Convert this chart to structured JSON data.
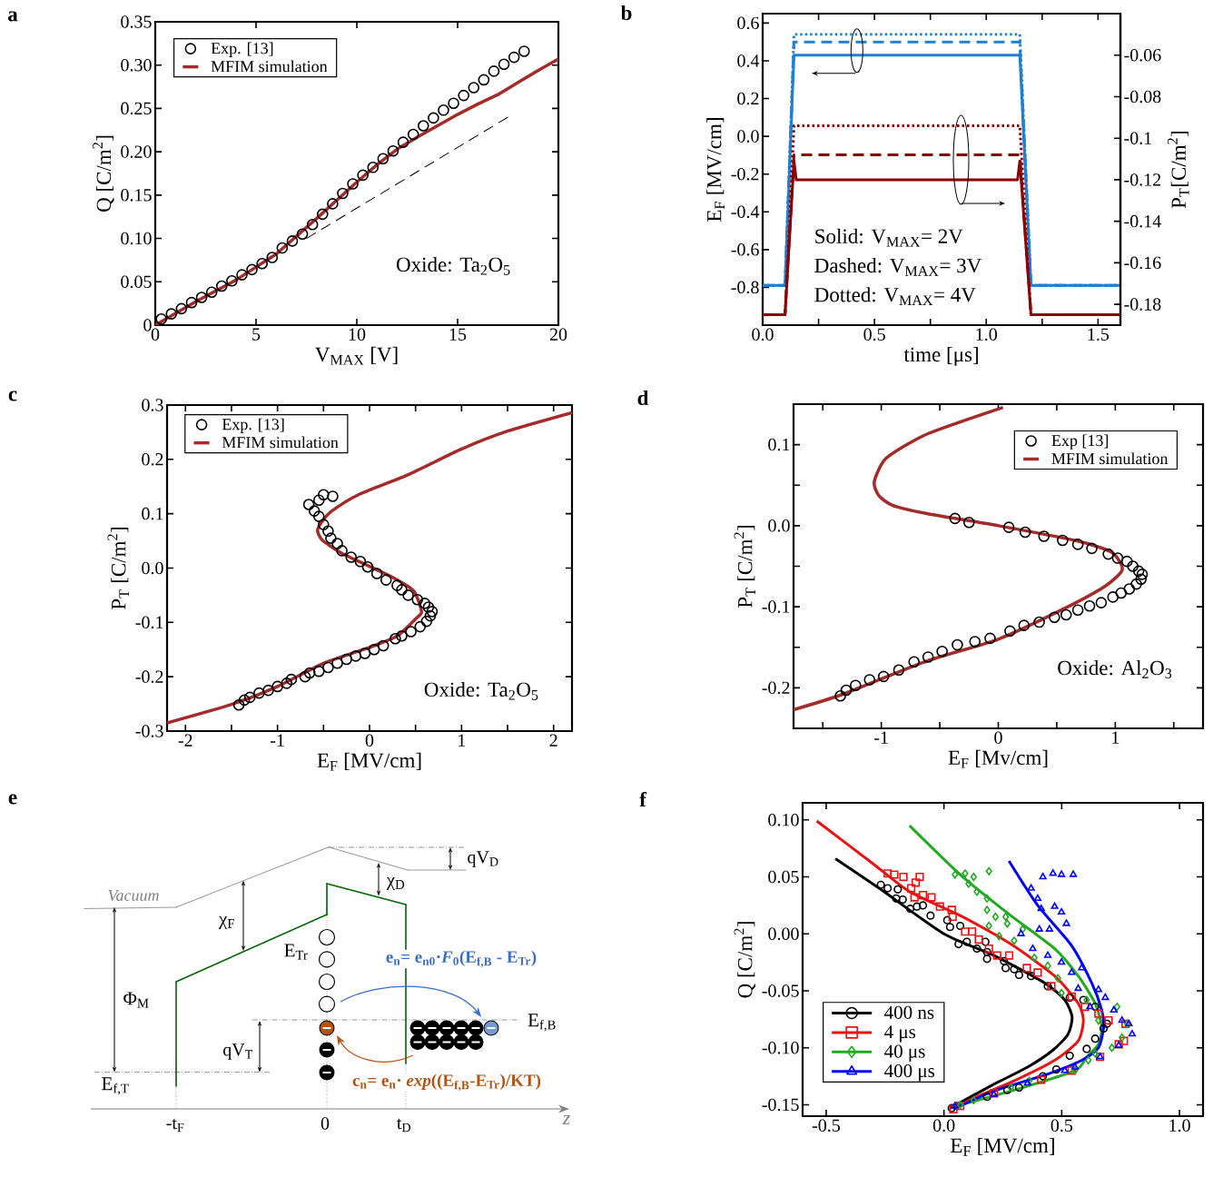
{
  "chart_data": [
    {
      "type": "line",
      "title": "a",
      "xlabel": "V$_{MAX}$ [V]",
      "ylabel": "Q [C/m$^{2}$]",
      "xlim": [
        0,
        20
      ],
      "ylim": [
        0,
        0.35
      ],
      "xticks": [
        0,
        5,
        10,
        15,
        20
      ],
      "yticks": [
        0,
        0.05,
        {
          "value": 0.1,
          "label": "0.10"
        },
        0.15,
        {
          "value": 0.2,
          "label": "0.20"
        },
        0.25,
        {
          "value": 0.3,
          "label": "0.30"
        },
        0.35
      ],
      "legend": "top left",
      "annotations": [
        "Oxide: Ta$_{2}$O$_{5}$"
      ],
      "series": [
        {
          "name": "Exp. [13]",
          "type": "scatter",
          "marker": "circle",
          "color": "#000000",
          "x": [
            0.3,
            0.8,
            1.3,
            1.8,
            2.3,
            2.8,
            3.3,
            3.8,
            4.3,
            4.8,
            5.3,
            5.8,
            6.3,
            6.8,
            7.3,
            7.8,
            8.3,
            8.8,
            9.3,
            9.8,
            10.3,
            10.8,
            11.3,
            11.8,
            12.3,
            12.8,
            13.3,
            13.8,
            14.3,
            14.8,
            15.3,
            15.8,
            16.3,
            16.8,
            17.3,
            17.8,
            18.3
          ],
          "values": [
            0.007,
            0.013,
            0.019,
            0.026,
            0.032,
            0.038,
            0.045,
            0.051,
            0.058,
            0.064,
            0.071,
            0.078,
            0.089,
            0.097,
            0.105,
            0.116,
            0.128,
            0.14,
            0.152,
            0.163,
            0.173,
            0.182,
            0.192,
            0.201,
            0.211,
            0.22,
            0.23,
            0.239,
            0.248,
            0.256,
            0.265,
            0.274,
            0.283,
            0.293,
            0.301,
            0.309,
            0.316
          ]
        },
        {
          "name": "MFIM simulation",
          "type": "line",
          "color": "#a52a2a",
          "x": [
            0,
            2,
            4,
            6,
            8,
            10,
            11,
            12,
            13,
            14,
            15,
            16,
            17,
            18,
            19,
            20
          ],
          "values": [
            0,
            0.027,
            0.052,
            0.082,
            0.123,
            0.165,
            0.185,
            0.203,
            0.217,
            0.23,
            0.243,
            0.255,
            0.266,
            0.28,
            0.294,
            0.307
          ]
        },
        {
          "type": "line",
          "line_style": "dashed",
          "color": "#000000",
          "x": [
            7.5,
            17.5
          ],
          "values": [
            0.1,
            0.24
          ]
        }
      ]
    },
    {
      "type": "line",
      "title": "b",
      "xlabel": "time [μs]",
      "ylabel": "E$_{F}$ [MV/cm]",
      "y2label": "P$_{T}$[C/m$^{2}$]",
      "xlim": [
        0,
        1.6
      ],
      "ylim": [
        -1.0,
        0.65
      ],
      "y2lim": [
        -0.19,
        -0.04
      ],
      "xticks": [
        {
          "value": 0,
          "label": "0.0"
        },
        {
          "value": 0.25,
          "label": null
        },
        0.5,
        {
          "value": 0.75,
          "label": null
        },
        {
          "value": 1,
          "label": "1.0"
        },
        {
          "value": 1.25,
          "label": null
        },
        1.5
      ],
      "yticks": [
        -0.8,
        -0.6,
        -0.4,
        -0.2,
        {
          "value": 0,
          "label": "0.0"
        },
        0.2,
        0.4,
        0.6
      ],
      "y2ticks": [
        -0.18,
        -0.16,
        -0.14,
        -0.12,
        -0.1,
        -0.08,
        -0.06
      ],
      "annotations": [
        "Solid: V$_{MAX}$= 2V",
        "Dashed: V$_{MAX}$= 3V",
        "Dotted: V$_{MAX}$= 4V"
      ],
      "x": [
        0,
        0.1,
        0.14,
        1.15,
        1.2,
        1.6
      ],
      "series": [
        {
          "color": "#1f7fd0",
          "line_style": "solid",
          "values": [
            -0.79,
            -0.79,
            0.43,
            0.43,
            -0.79,
            -0.79
          ]
        },
        {
          "color": "#1f7fd0",
          "line_style": "dashed",
          "values": [
            -0.79,
            -0.79,
            0.5,
            0.5,
            -0.79,
            -0.79
          ]
        },
        {
          "color": "#1f7fd0",
          "line_style": "dotted",
          "values": [
            -0.79,
            -0.79,
            0.54,
            0.54,
            -0.79,
            -0.79
          ]
        },
        {
          "color": "#8b0000",
          "line_style": "solid",
          "axis": "y2",
          "x": [
            0,
            0.1,
            0.14,
            0.15,
            1.14,
            1.15,
            1.2,
            1.6
          ],
          "values": [
            -0.185,
            -0.185,
            -0.111,
            -0.12,
            -0.12,
            -0.111,
            -0.185,
            -0.185
          ]
        },
        {
          "color": "#8b0000",
          "line_style": "dashed",
          "axis": "y2",
          "values": [
            -0.185,
            -0.185,
            -0.108,
            -0.108,
            -0.185,
            -0.185
          ]
        },
        {
          "color": "#8b0000",
          "line_style": "dotted",
          "axis": "y2",
          "values": [
            -0.185,
            -0.185,
            -0.094,
            -0.094,
            -0.185,
            -0.185
          ]
        }
      ]
    },
    {
      "type": "line",
      "title": "c",
      "xlabel": "E$_{F}$ [MV/cm]",
      "ylabel": "P$_{T}$ [C/m$^{2}$]",
      "xlim": [
        -2.2,
        2.2
      ],
      "ylim": [
        -0.3,
        0.3
      ],
      "xticks": [
        -2,
        {
          "value": -1.5,
          "label": null
        },
        -1,
        {
          "value": -0.5,
          "label": null
        },
        0,
        {
          "value": 0.5,
          "label": null
        },
        1,
        {
          "value": 1.5,
          "label": null
        },
        2
      ],
      "yticks": [
        -0.3,
        -0.2,
        -0.1,
        {
          "value": 0,
          "label": "0.0"
        },
        0.1,
        0.2,
        0.3
      ],
      "legend": "top left",
      "annotations": [
        "Oxide: Ta$_{2}$O$_{5}$"
      ],
      "series": [
        {
          "name": "Exp. [13]",
          "type": "scatter",
          "marker": "circle",
          "color": "#000000",
          "x": [
            -1.42,
            -1.36,
            -1.3,
            -1.2,
            -1.1,
            -1.0,
            -0.9,
            -0.85,
            -0.7,
            -0.65,
            -0.55,
            -0.45,
            -0.35,
            -0.25,
            -0.15,
            -0.05,
            0.05,
            0.15,
            0.28,
            0.35,
            0.45,
            0.55,
            0.62,
            0.66,
            0.68,
            0.64,
            0.6,
            0.52,
            0.42,
            0.35,
            0.3,
            0.18,
            0.08,
            -0.02,
            -0.1,
            -0.2,
            -0.3,
            -0.35,
            -0.42,
            -0.45,
            -0.5,
            -0.55,
            -0.6,
            -0.66,
            -0.55,
            -0.5,
            -0.4
          ],
          "values": [
            -0.252,
            -0.243,
            -0.238,
            -0.23,
            -0.225,
            -0.218,
            -0.212,
            -0.205,
            -0.2,
            -0.193,
            -0.19,
            -0.183,
            -0.175,
            -0.168,
            -0.162,
            -0.157,
            -0.15,
            -0.143,
            -0.13,
            -0.125,
            -0.117,
            -0.108,
            -0.098,
            -0.088,
            -0.08,
            -0.072,
            -0.065,
            -0.058,
            -0.05,
            -0.04,
            -0.032,
            -0.022,
            -0.01,
            0.002,
            0.012,
            0.02,
            0.032,
            0.045,
            0.055,
            0.068,
            0.08,
            0.095,
            0.105,
            0.117,
            0.125,
            0.135,
            0.132
          ]
        },
        {
          "name": "MFIM simulation",
          "type": "line",
          "color": "#a52a2a",
          "x": [
            -2.2,
            -1.5,
            -1.0,
            -0.51,
            0,
            0.3,
            0.51,
            0.565,
            0.48,
            0.26,
            0,
            -0.3,
            -0.51,
            -0.565,
            -0.51,
            -0.41,
            -0.12,
            0.41,
            1.0,
            1.5,
            2.2
          ],
          "values": [
            -0.285,
            -0.251,
            -0.218,
            -0.176,
            -0.146,
            -0.125,
            -0.092,
            -0.08,
            -0.042,
            -0.018,
            0.003,
            0.027,
            0.051,
            0.069,
            0.087,
            0.105,
            0.135,
            0.171,
            0.219,
            0.252,
            0.286
          ]
        }
      ]
    },
    {
      "type": "line",
      "title": "d",
      "xlabel": "E$_{F}$ [Mv/cm]",
      "ylabel": "P$_{T}$ [C/m$^{2}$]",
      "xlim": [
        -1.75,
        1.75
      ],
      "ylim": [
        -0.25,
        0.15
      ],
      "xticks": [
        {
          "value": -1.5,
          "label": null
        },
        -1,
        {
          "value": -0.5,
          "label": null
        },
        0,
        {
          "value": 0.5,
          "label": null
        },
        1,
        {
          "value": 1.5,
          "label": null
        }
      ],
      "yticks": [
        -0.2,
        {
          "value": -0.15,
          "label": null
        },
        -0.1,
        {
          "value": -0.05,
          "label": null
        },
        {
          "value": 0,
          "label": "0.0"
        },
        {
          "value": 0.05,
          "label": null
        },
        0.1
      ],
      "legend": "top right",
      "annotations": [
        "Oxide: Al$_{2}$O$_{3}$"
      ],
      "series": [
        {
          "name": "Exp [13]",
          "type": "scatter",
          "marker": "circle",
          "color": "#000000",
          "x": [
            -0.37,
            -0.25,
            0.09,
            0.23,
            0.39,
            0.55,
            0.68,
            0.8,
            0.94,
            1.02,
            1.1,
            1.15,
            1.2,
            1.23,
            1.22,
            1.18,
            1.12,
            1.05,
            0.98,
            0.88,
            0.78,
            0.68,
            0.58,
            0.48,
            0.35,
            0.22,
            0.1,
            -0.07,
            -0.2,
            -0.35,
            -0.48,
            -0.6,
            -0.72,
            -0.85,
            -0.98,
            -1.1,
            -1.22,
            -1.3,
            -1.35
          ],
          "values": [
            0.009,
            0.004,
            -0.002,
            -0.008,
            -0.013,
            -0.018,
            -0.023,
            -0.028,
            -0.035,
            -0.04,
            -0.044,
            -0.05,
            -0.056,
            -0.06,
            -0.066,
            -0.072,
            -0.078,
            -0.083,
            -0.088,
            -0.095,
            -0.099,
            -0.104,
            -0.11,
            -0.113,
            -0.119,
            -0.123,
            -0.13,
            -0.139,
            -0.143,
            -0.147,
            -0.155,
            -0.162,
            -0.168,
            -0.178,
            -0.186,
            -0.19,
            -0.197,
            -0.203,
            -0.21
          ]
        },
        {
          "name": "MFIM simulation",
          "type": "line",
          "color": "#a52a2a",
          "x": [
            -1.75,
            -1.33,
            -0.61,
            0,
            0.54,
            0.91,
            1.06,
            0.97,
            0.68,
            0,
            -0.61,
            -0.9,
            -1.02,
            -1.06,
            -0.96,
            -0.61,
            0.04
          ],
          "values": [
            -0.227,
            -0.208,
            -0.167,
            -0.14,
            -0.104,
            -0.075,
            -0.054,
            -0.033,
            -0.019,
            0,
            0.015,
            0.025,
            0.037,
            0.054,
            0.083,
            0.113,
            0.146
          ]
        }
      ]
    },
    {
      "type": "other",
      "title": "e",
      "annotations": [
        "Vacuum",
        "χ$_{F}$",
        "χ$_{D}$",
        "qV$_{D}$",
        "Φ$_{M}$",
        "E$_{Tr}$",
        "qV$_{T}$",
        "E$_{f,B}$",
        "E$_{f,T}$",
        "-t$_{F}$",
        "0",
        "t$_{D}$",
        "z",
        "e$_{n}$= e$_{n0}$·*F*$_{0}$(E$_{f,B}$ - E$_{Tr}$)",
        "c$_{n}$= e$_{n}$· *exp*((E$_{f,B}$-E$_{Tr}$)/KT)"
      ]
    },
    {
      "type": "line",
      "title": "f",
      "xlabel": "E$_{F}$ [MV/cm]",
      "ylabel": "Q  [C/m$^{2}$]",
      "xlim": [
        -0.6,
        1.1
      ],
      "ylim": [
        -0.16,
        0.115
      ],
      "xticks": [
        -0.5,
        {
          "value": 0,
          "label": "0.0"
        },
        0.5,
        {
          "value": 1,
          "label": "1.0"
        }
      ],
      "yticks": [
        -0.15,
        {
          "value": -0.1,
          "label": "-0.10"
        },
        -0.05,
        {
          "value": 0,
          "label": "0.00"
        },
        0.05,
        {
          "value": 0.1,
          "label": "0.10"
        }
      ],
      "legend": "bottom left",
      "series": [
        {
          "name": "400 ns",
          "type": "line",
          "color": "#000000",
          "x": [
            -0.461,
            -0.275,
            0,
            0.212,
            0.427,
            0.513,
            0.544,
            0.527,
            0.463,
            0.355,
            0.212,
            0.026
          ],
          "values": [
            0.066,
            0.04,
            0,
            -0.019,
            -0.043,
            -0.058,
            -0.073,
            -0.088,
            -0.102,
            -0.117,
            -0.132,
            -0.153
          ]
        },
        {
          "name": "4 μs",
          "type": "line",
          "color": "#ee1111",
          "x": [
            -0.54,
            -0.304,
            -0.146,
            0.069,
            0.284,
            0.47,
            0.57,
            0.592,
            0.57,
            0.47,
            0.298,
            0.14,
            0.04
          ],
          "values": [
            0.099,
            0.062,
            0.037,
            0.016,
            -0.009,
            -0.037,
            -0.061,
            -0.076,
            -0.094,
            -0.111,
            -0.129,
            -0.143,
            -0.154
          ]
        },
        {
          "name": "40 μs",
          "type": "line",
          "color": "#22aa22",
          "x": [
            -0.146,
            0.069,
            0.284,
            0.47,
            0.57,
            0.642,
            0.67,
            0.656,
            0.606,
            0.556,
            0.3,
            0.054
          ],
          "values": [
            0.095,
            0.052,
            0.016,
            -0.013,
            -0.037,
            -0.061,
            -0.082,
            -0.097,
            -0.108,
            -0.12,
            -0.137,
            -0.151
          ]
        },
        {
          "name": "400 μs",
          "type": "line",
          "color": "#0000ff",
          "x": [
            0.276,
            0.398,
            0.541,
            0.627,
            0.67,
            0.678,
            0.656,
            0.585,
            0.441,
            0.212,
            0.04
          ],
          "values": [
            0.064,
            0.025,
            -0.01,
            -0.043,
            -0.067,
            -0.082,
            -0.1,
            -0.111,
            -0.123,
            -0.138,
            -0.154
          ]
        },
        {
          "type": "scatter",
          "marker": "circle",
          "color": "#000000",
          "x": [
            -0.268,
            -0.239,
            -0.196,
            -0.203,
            -0.175,
            -0.143,
            -0.115,
            -0.089,
            -0.057,
            0.014,
            0.026,
            0.069,
            0.062,
            0.097,
            0.14,
            0.176,
            0.183,
            0.183,
            0.255,
            0.262,
            0.298,
            0.319,
            0.37,
            0.441,
            0.534,
            0.592,
            0.642,
            0.692,
            0.678,
            0.642,
            0.606,
            0.534,
            0.477,
            0.42,
            0.319,
            0.269,
            0.183,
            0.033
          ],
          "values": [
            0.043,
            0.04,
            0.039,
            0.031,
            0.03,
            0.022,
            0.024,
            0.025,
            0.016,
            0.012,
            0.006,
            0.007,
            -0.009,
            -0.007,
            -0.013,
            -0.007,
            -0.016,
            -0.022,
            -0.024,
            -0.03,
            -0.031,
            -0.036,
            -0.037,
            -0.046,
            -0.056,
            -0.058,
            -0.064,
            -0.079,
            -0.083,
            -0.092,
            -0.101,
            -0.107,
            -0.119,
            -0.125,
            -0.135,
            -0.137,
            -0.143,
            -0.153
          ]
        },
        {
          "type": "scatter",
          "marker": "square",
          "color": "#ee1111",
          "x": [
            -0.239,
            -0.211,
            -0.172,
            -0.12,
            -0.103,
            -0.139,
            -0.125,
            -0.089,
            -0.053,
            -0.017,
            0.033,
            0.037,
            0.09,
            0.119,
            0.148,
            0.191,
            0.226,
            0.277,
            0.352,
            0.398,
            0.456,
            0.542,
            0.599,
            0.656,
            0.699,
            0.771,
            0.764,
            0.742,
            0.663,
            0.542,
            0.413,
            0.212,
            0.069,
            0.04
          ],
          "values": [
            0.053,
            0.052,
            0.05,
            0.045,
            0.05,
            0.04,
            0.032,
            0.034,
            0.032,
            0.024,
            0.021,
            0.015,
            0.002,
            0.002,
            -0.005,
            -0.013,
            -0.019,
            -0.019,
            -0.03,
            -0.034,
            -0.046,
            -0.055,
            -0.064,
            -0.07,
            -0.076,
            -0.079,
            -0.094,
            -0.097,
            -0.108,
            -0.12,
            -0.128,
            -0.14,
            -0.151,
            -0.154
          ]
        },
        {
          "type": "scatter",
          "marker": "diamond",
          "color": "#22aa22",
          "x": [
            0.047,
            0.09,
            0.126,
            0.191,
            0.105,
            0.14,
            0.183,
            0.183,
            0.219,
            0.191,
            0.234,
            0.262,
            0.269,
            0.298,
            0.334,
            0.384,
            0.441,
            0.484,
            0.499,
            0.606,
            0.656,
            0.735,
            0.778,
            0.756,
            0.713,
            0.642,
            0.613,
            0.556,
            0.362,
            0.284,
            0.126,
            0.069
          ],
          "values": [
            0.052,
            0.053,
            0.05,
            0.055,
            0.044,
            0.037,
            0.031,
            0.021,
            0.015,
            0.007,
            -0.002,
            0.015,
            0.009,
            -0.006,
            0.004,
            -0.021,
            -0.028,
            -0.039,
            -0.052,
            -0.058,
            -0.076,
            -0.064,
            -0.079,
            -0.091,
            -0.1,
            -0.105,
            -0.111,
            -0.12,
            -0.129,
            -0.135,
            -0.146,
            -0.15
          ]
        },
        {
          "type": "scatter",
          "marker": "triangle",
          "color": "#0000ff",
          "x": [
            0.42,
            0.463,
            0.499,
            0.549,
            0.37,
            0.398,
            0.413,
            0.47,
            0.499,
            0.52,
            0.327,
            0.405,
            0.448,
            0.377,
            0.441,
            0.499,
            0.542,
            0.585,
            0.57,
            0.62,
            0.656,
            0.685,
            0.721,
            0.756,
            0.785,
            0.799,
            0.742,
            0.663,
            0.556,
            0.513,
            0.355,
            0.212,
            0.047
          ],
          "values": [
            0.05,
            0.053,
            0.052,
            0.052,
            0.04,
            0.031,
            0.022,
            0.024,
            0.019,
            0.009,
            0,
            0.004,
            0.004,
            -0.013,
            -0.019,
            -0.025,
            -0.034,
            -0.03,
            -0.048,
            -0.064,
            -0.049,
            -0.056,
            -0.067,
            -0.076,
            -0.079,
            -0.088,
            -0.098,
            -0.108,
            -0.117,
            -0.12,
            -0.131,
            -0.141,
            -0.151
          ]
        }
      ]
    }
  ]
}
